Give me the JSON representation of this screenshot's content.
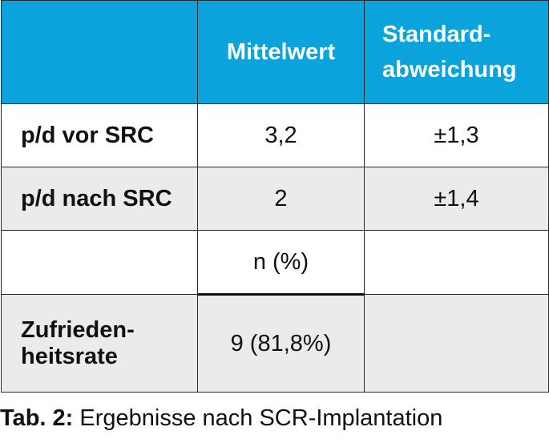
{
  "table": {
    "header": {
      "col0": "",
      "col1": "Mittelwert",
      "col2_line1": "Standard-",
      "col2_line2": "abweichung"
    },
    "rows": [
      {
        "label": "p/d vor SRC",
        "value": "3,2",
        "sd": "±1,3"
      },
      {
        "label": "p/d nach SRC",
        "value": "2",
        "sd": "±1,4"
      },
      {
        "label": "",
        "value": "n (%)",
        "sd": ""
      },
      {
        "label_line1": "Zufrieden-",
        "label_line2": "heitsrate",
        "value": "9 (81,8%)",
        "sd": ""
      }
    ]
  },
  "caption": {
    "prefix": "Tab. 2:",
    "text": "Ergebnisse nach SCR-Implantation"
  },
  "colors": {
    "header_bg": "#0aa3dc",
    "row_gray": "#ebebeb"
  }
}
